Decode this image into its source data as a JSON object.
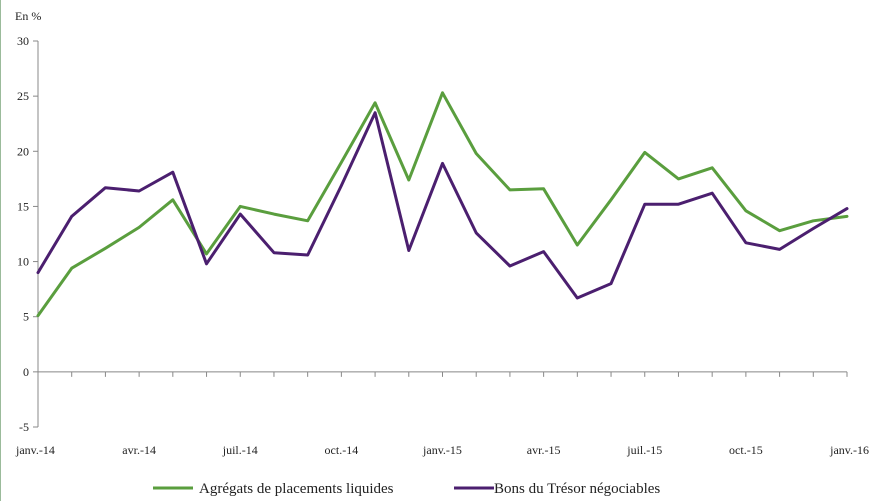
{
  "chart_data": {
    "type": "line",
    "unit_label": "En %",
    "ylim": [
      -5,
      30
    ],
    "yticks": [
      -5,
      0,
      5,
      10,
      15,
      20,
      25,
      30
    ],
    "x_labels": [
      "janv.-14",
      "avr.-14",
      "juil.-14",
      "oct.-14",
      "janv.-15",
      "avr.-15",
      "juil.-15",
      "oct.-15",
      "janv.-16"
    ],
    "x_label_every": 3,
    "months": [
      "janv.-14",
      "févr.-14",
      "mars-14",
      "avr.-14",
      "mai-14",
      "juin-14",
      "juil.-14",
      "août-14",
      "sept.-14",
      "oct.-14",
      "nov.-14",
      "déc.-14",
      "janv.-15",
      "févr.-15",
      "mars-15",
      "avr.-15",
      "mai-15",
      "juin-15",
      "juil.-15",
      "août-15",
      "sept.-15",
      "oct.-15",
      "nov.-15",
      "déc.-15",
      "janv.-16"
    ],
    "grid": false,
    "legend_position": "bottom",
    "series": [
      {
        "name": "Agrégats de placements liquides",
        "color": "#5a9e3e",
        "values": [
          5.1,
          9.4,
          11.2,
          13.1,
          15.6,
          10.7,
          15.0,
          14.3,
          13.7,
          19.0,
          24.4,
          17.4,
          25.3,
          19.8,
          16.5,
          16.6,
          11.5,
          15.6,
          19.9,
          17.5,
          18.5,
          14.6,
          12.8,
          13.7,
          14.1
        ]
      },
      {
        "name": "Bons du Trésor négociables",
        "color": "#4b1f6f",
        "values": [
          9.0,
          14.1,
          16.7,
          16.4,
          18.1,
          9.8,
          14.3,
          10.8,
          10.6,
          16.9,
          23.5,
          11.0,
          18.9,
          12.6,
          9.6,
          10.9,
          6.7,
          8.0,
          15.2,
          15.2,
          16.2,
          11.7,
          11.1,
          13.0,
          14.8
        ]
      }
    ]
  }
}
